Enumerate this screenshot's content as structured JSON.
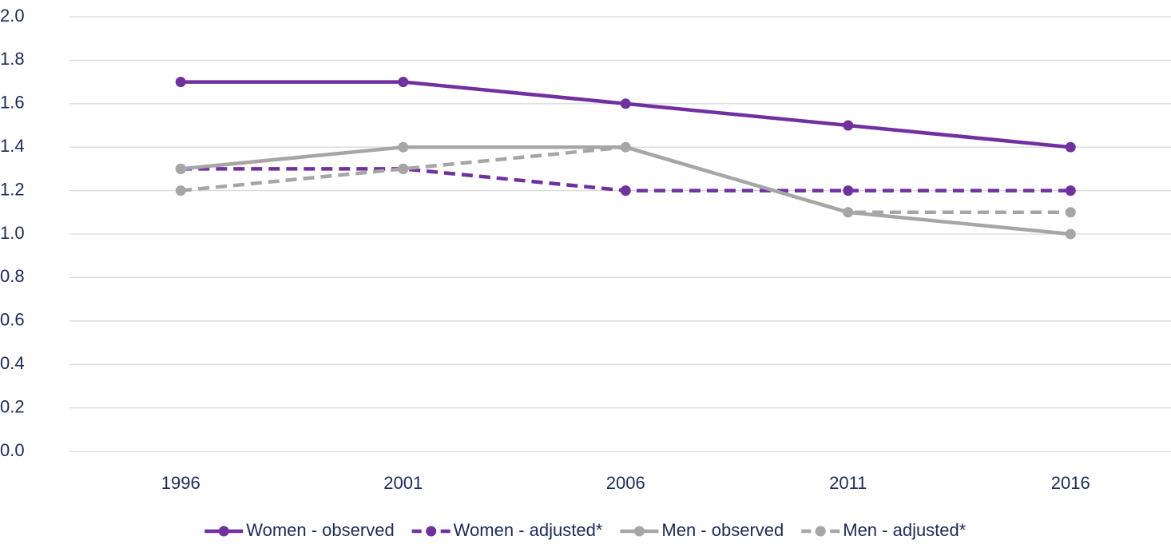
{
  "chart_data": {
    "type": "line",
    "categories": [
      "1996",
      "2001",
      "2006",
      "2011",
      "2016"
    ],
    "series": [
      {
        "name": "Women - observed",
        "color": "#7030a0",
        "line_style": "solid",
        "values": [
          1.7,
          1.7,
          1.6,
          1.5,
          1.4
        ]
      },
      {
        "name": "Women - adjusted*",
        "color": "#7030a0",
        "line_style": "dashed",
        "values": [
          1.3,
          1.3,
          1.2,
          1.2,
          1.2
        ]
      },
      {
        "name": "Men - observed",
        "color": "#a6a6a6",
        "line_style": "solid",
        "values": [
          1.3,
          1.4,
          1.4,
          1.1,
          1.0
        ]
      },
      {
        "name": "Men - adjusted*",
        "color": "#a6a6a6",
        "line_style": "dashed",
        "values": [
          1.2,
          1.3,
          1.4,
          1.1,
          1.1
        ]
      }
    ],
    "ylim": [
      0,
      2
    ],
    "yticks": [
      {
        "value": 0,
        "label": "0.0"
      },
      0.2,
      0.4,
      0.6,
      0.8,
      {
        "value": 1,
        "label": "1.0"
      },
      1.2,
      1.4,
      1.6,
      1.8,
      {
        "value": 2,
        "label": "2.0"
      }
    ],
    "grid": true,
    "legend": "bottom"
  }
}
